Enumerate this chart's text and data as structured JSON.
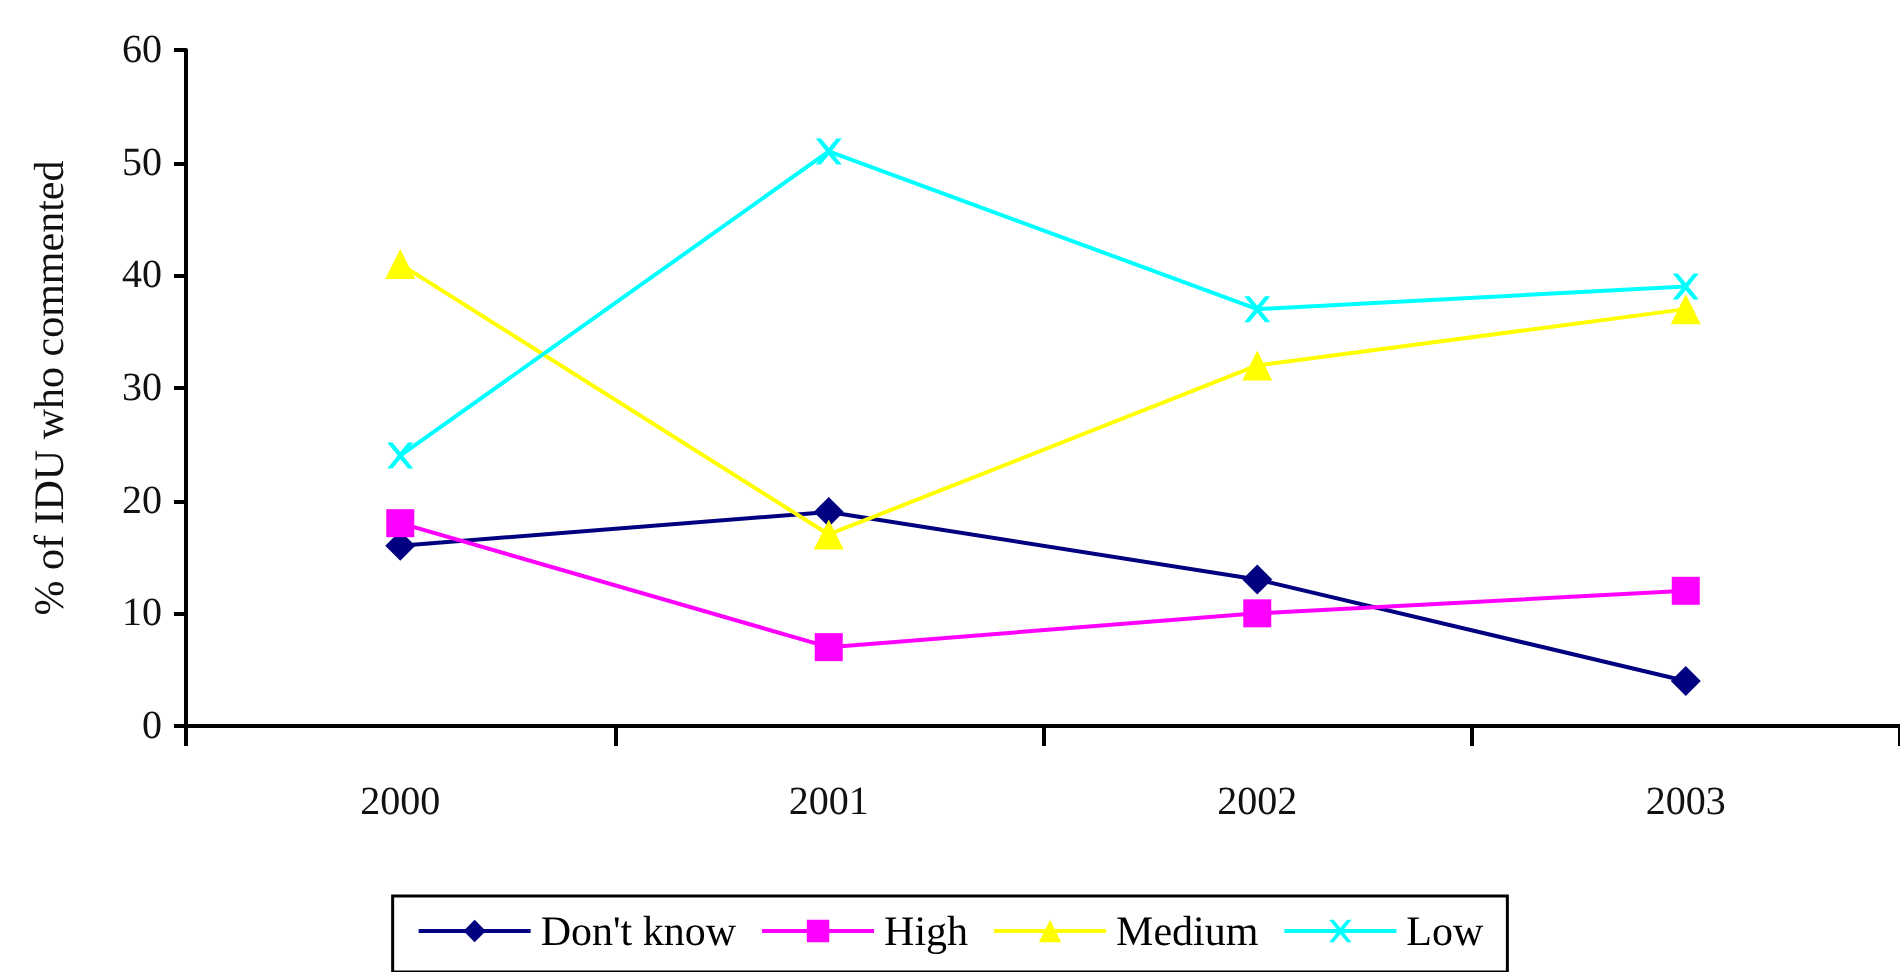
{
  "chart_data": {
    "type": "line",
    "ylabel": "% of IDU who commented",
    "categories": [
      "2000",
      "2001",
      "2002",
      "2003"
    ],
    "series": [
      {
        "name": "Don't know",
        "color": "#000080",
        "marker": "diamond",
        "values": [
          16,
          19,
          13,
          4
        ]
      },
      {
        "name": "High",
        "color": "#ff00ff",
        "marker": "square",
        "values": [
          18,
          7,
          10,
          12
        ]
      },
      {
        "name": "Medium",
        "color": "#ffff00",
        "marker": "triangle",
        "values": [
          41,
          17,
          32,
          37
        ]
      },
      {
        "name": "Low",
        "color": "#00ffff",
        "marker": "cross",
        "values": [
          24,
          51,
          37,
          39
        ]
      }
    ],
    "ylim": [
      0,
      60
    ],
    "yticks": [
      0,
      10,
      20,
      30,
      40,
      50,
      60
    ],
    "grid": false,
    "legend": "bottom"
  }
}
